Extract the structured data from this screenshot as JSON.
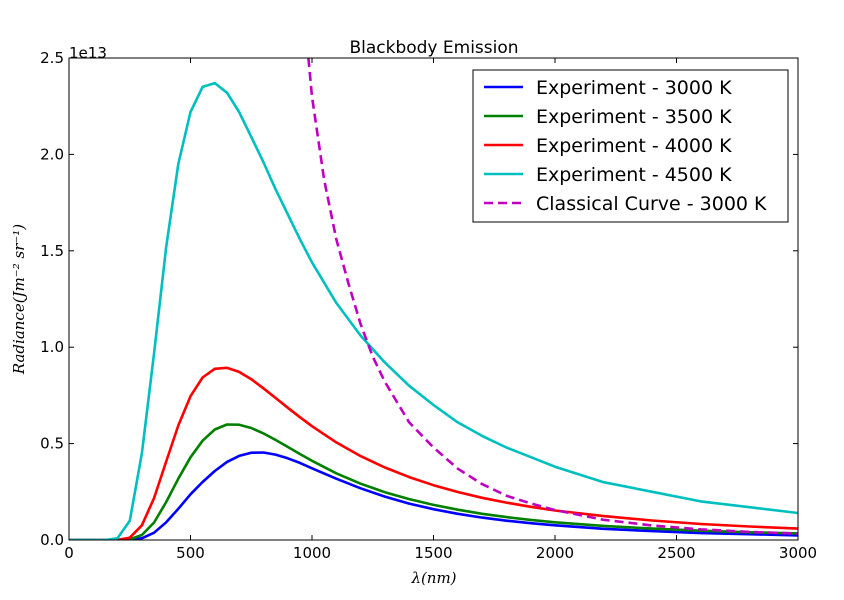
{
  "chart_data": {
    "type": "line",
    "title": "Blackbody Emission",
    "xlabel": "λ(nm)",
    "ylabel": "Radiance(Jm⁻² sr⁻¹)",
    "y_offset_text": "1e13",
    "y_scale": 10000000000000.0,
    "xlim": [
      0,
      3000
    ],
    "ylim": [
      0,
      2.5
    ],
    "x_ticks": [
      "0",
      "500",
      "1000",
      "1500",
      "2000",
      "2500",
      "3000"
    ],
    "y_ticks": [
      "0.0",
      "0.5",
      "1.0",
      "1.5",
      "2.0",
      "2.5"
    ],
    "grid": false,
    "legend_position": "top-right",
    "series": [
      {
        "name": "Experiment - 3000 K",
        "color": "#0000ff",
        "style": "solid",
        "x": [
          150,
          200,
          250,
          300,
          350,
          400,
          450,
          500,
          550,
          600,
          650,
          700,
          750,
          800,
          850,
          900,
          950,
          1000,
          1100,
          1200,
          1300,
          1400,
          1500,
          1600,
          1700,
          1800,
          1900,
          2000,
          2200,
          2400,
          2600,
          2800,
          3000
        ],
        "y": [
          0.0,
          0.0,
          0.001,
          0.009,
          0.038,
          0.092,
          0.162,
          0.237,
          0.301,
          0.358,
          0.405,
          0.436,
          0.453,
          0.454,
          0.443,
          0.424,
          0.4,
          0.372,
          0.318,
          0.268,
          0.225,
          0.189,
          0.16,
          0.136,
          0.116,
          0.1,
          0.087,
          0.076,
          0.058,
          0.046,
          0.036,
          0.03,
          0.024
        ]
      },
      {
        "name": "Experiment - 3500 K",
        "color": "#008000",
        "style": "solid",
        "x": [
          150,
          200,
          250,
          300,
          350,
          400,
          450,
          500,
          550,
          600,
          650,
          700,
          750,
          800,
          850,
          900,
          950,
          1000,
          1100,
          1200,
          1300,
          1400,
          1500,
          1600,
          1700,
          1800,
          1900,
          2000,
          2200,
          2400,
          2600,
          2800,
          3000
        ],
        "y": [
          0.0,
          0.0,
          0.003,
          0.026,
          0.091,
          0.197,
          0.318,
          0.429,
          0.515,
          0.573,
          0.599,
          0.598,
          0.581,
          0.553,
          0.519,
          0.483,
          0.446,
          0.411,
          0.346,
          0.292,
          0.248,
          0.212,
          0.182,
          0.157,
          0.136,
          0.119,
          0.104,
          0.092,
          0.073,
          0.059,
          0.048,
          0.04,
          0.034
        ]
      },
      {
        "name": "Experiment - 4000 K",
        "color": "#ff0000",
        "style": "solid",
        "x": [
          150,
          200,
          250,
          300,
          350,
          400,
          450,
          500,
          550,
          600,
          650,
          700,
          750,
          800,
          850,
          900,
          950,
          1000,
          1100,
          1200,
          1300,
          1400,
          1500,
          1600,
          1700,
          1800,
          1900,
          2000,
          2200,
          2400,
          2600,
          2800,
          3000
        ],
        "y": [
          0.0,
          0.001,
          0.012,
          0.076,
          0.218,
          0.407,
          0.594,
          0.746,
          0.843,
          0.888,
          0.893,
          0.872,
          0.834,
          0.787,
          0.737,
          0.686,
          0.637,
          0.59,
          0.506,
          0.435,
          0.376,
          0.326,
          0.284,
          0.249,
          0.219,
          0.194,
          0.172,
          0.153,
          0.124,
          0.101,
          0.083,
          0.07,
          0.059
        ]
      },
      {
        "name": "Experiment - 4500 K",
        "color": "#00bfbf",
        "style": "solid",
        "x": [
          150,
          200,
          250,
          300,
          350,
          400,
          450,
          500,
          550,
          600,
          650,
          700,
          750,
          800,
          850,
          900,
          950,
          1000,
          1100,
          1200,
          1300,
          1400,
          1500,
          1600,
          1700,
          1800,
          1900,
          2000,
          2200,
          2400,
          2600,
          2800,
          3000
        ],
        "y": [
          0.0,
          0.01,
          0.1,
          0.45,
          0.97,
          1.52,
          1.95,
          2.22,
          2.35,
          2.37,
          2.32,
          2.22,
          2.09,
          1.96,
          1.82,
          1.69,
          1.56,
          1.44,
          1.23,
          1.06,
          0.92,
          0.8,
          0.7,
          0.61,
          0.54,
          0.48,
          0.43,
          0.38,
          0.3,
          0.25,
          0.2,
          0.17,
          0.14
        ]
      },
      {
        "name": "Classical Curve - 3000 K",
        "color": "#bf00bf",
        "style": "dashed",
        "x": [
          985,
          1000,
          1050,
          1100,
          1150,
          1200,
          1250,
          1300,
          1400,
          1500,
          1600,
          1700,
          1800,
          1900,
          2000,
          2200,
          2400,
          2600,
          2800,
          3000
        ],
        "y": [
          2.5,
          2.3,
          1.87,
          1.56,
          1.33,
          1.12,
          0.95,
          0.82,
          0.61,
          0.48,
          0.37,
          0.29,
          0.23,
          0.19,
          0.155,
          0.105,
          0.075,
          0.055,
          0.042,
          0.033
        ]
      }
    ]
  }
}
